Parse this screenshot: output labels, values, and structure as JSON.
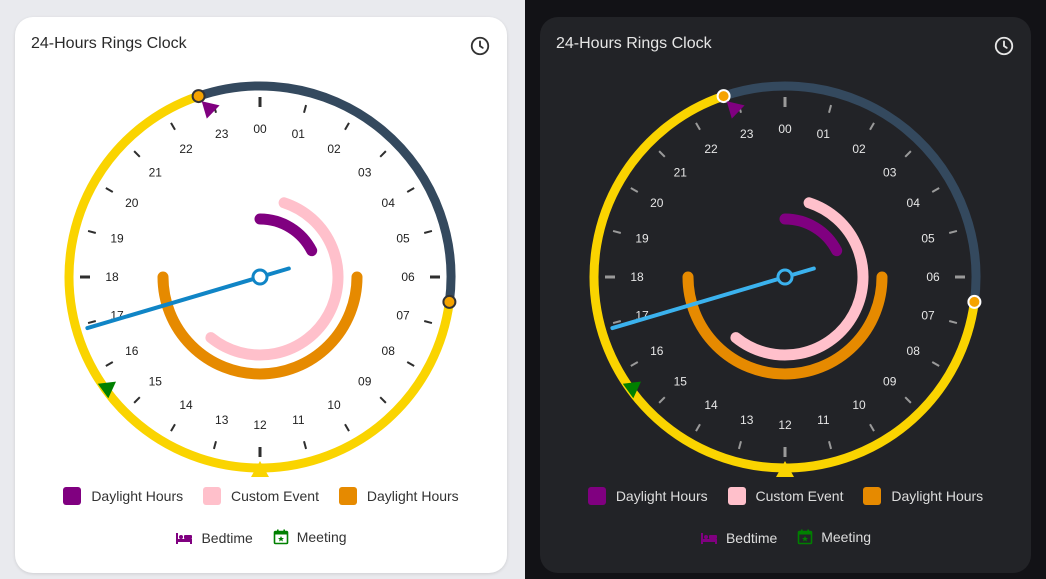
{
  "title": "24-Hours Rings Clock",
  "hours": [
    "00",
    "01",
    "02",
    "03",
    "04",
    "05",
    "06",
    "07",
    "08",
    "09",
    "10",
    "11",
    "12",
    "13",
    "14",
    "15",
    "16",
    "17",
    "18",
    "19",
    "20",
    "21",
    "22",
    "23"
  ],
  "legend": [
    {
      "label": "Daylight Hours",
      "color": "#800080"
    },
    {
      "label": "Custom Event",
      "color": "#ffc0cb"
    },
    {
      "label": "Daylight Hours",
      "color": "#e68a00"
    }
  ],
  "events": [
    {
      "label": "Bedtime",
      "icon": "bed-icon",
      "color": "#800080"
    },
    {
      "label": "Meeting",
      "icon": "calendar-star-icon",
      "color": "#008000"
    }
  ],
  "colors": {
    "day_ring": "#fad400",
    "night_ring_light": "#34495e",
    "night_ring_dark": "#34495e",
    "hand_light": "#1085c6",
    "hand_dark": "#3bb2ee",
    "purple": "#800080",
    "pink": "#ffc0cb",
    "orange": "#e68a00",
    "green": "#008000",
    "sun_marker": "#f5a300"
  }
}
